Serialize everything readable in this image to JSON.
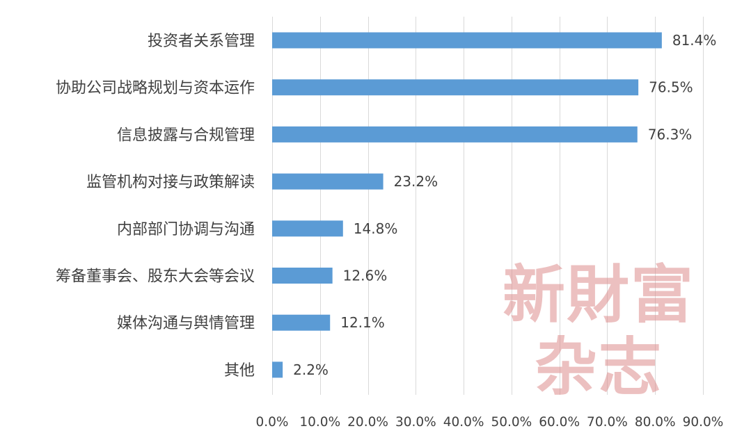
{
  "chart_data": {
    "type": "bar",
    "orientation": "horizontal",
    "categories": [
      "投资者关系管理",
      "协助公司战略规划与资本运作",
      "信息披露与合规管理",
      "监管机构对接与政策解读",
      "内部部门协调与沟通",
      "筹备董事会、股东大会等会议",
      "媒体沟通与舆情管理",
      "其他"
    ],
    "values": [
      81.4,
      76.5,
      76.3,
      23.2,
      14.8,
      12.6,
      12.1,
      2.2
    ],
    "value_labels": [
      "81.4%",
      "76.5%",
      "76.3%",
      "23.2%",
      "14.8%",
      "12.6%",
      "12.1%",
      "2.2%"
    ],
    "x_ticks": [
      "0.0%",
      "10.0%",
      "20.0%",
      "30.0%",
      "40.0%",
      "50.0%",
      "60.0%",
      "70.0%",
      "80.0%",
      "90.0%"
    ],
    "xlim": [
      0,
      90
    ],
    "grid": true,
    "bar_color": "#5b9bd5",
    "title": "",
    "xlabel": "",
    "ylabel": ""
  },
  "watermark": {
    "line1": "新財富",
    "line2": "杂志"
  }
}
